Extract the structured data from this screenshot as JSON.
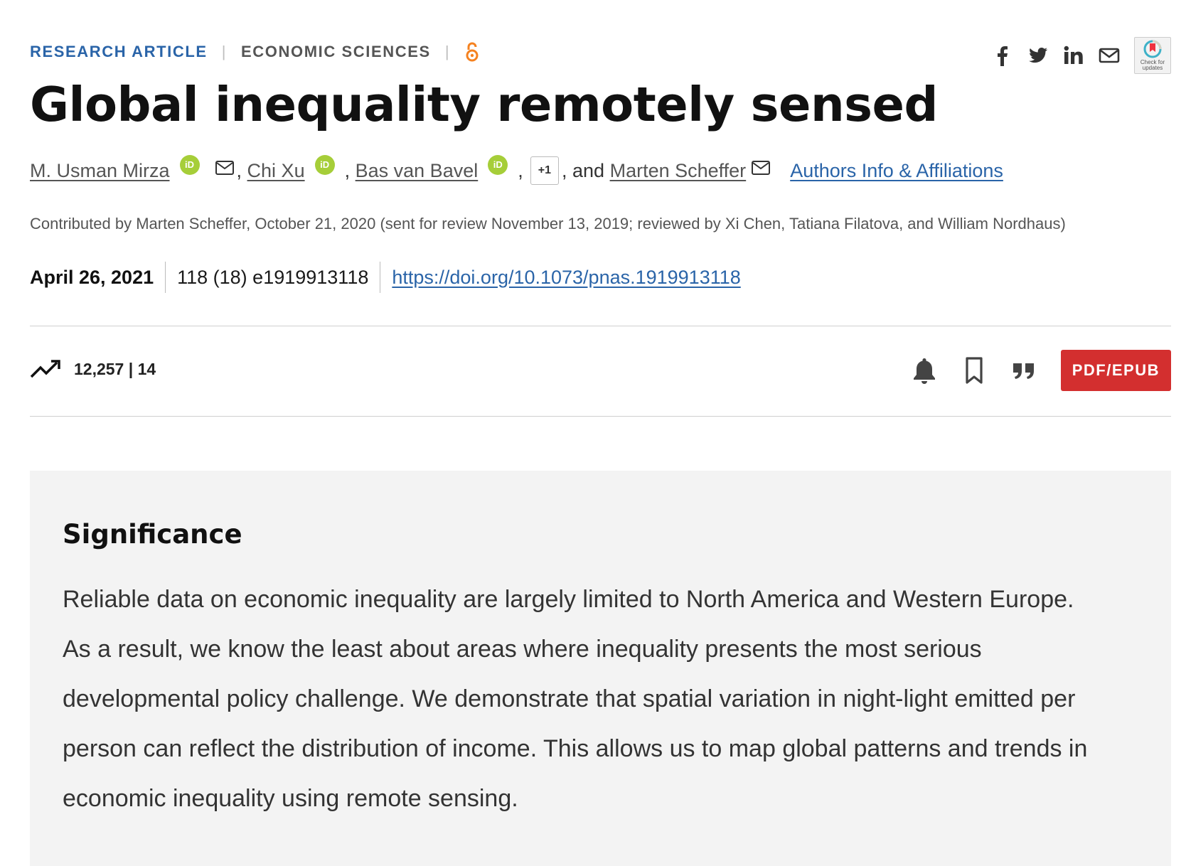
{
  "header": {
    "article_type": "RESEARCH ARTICLE",
    "section": "ECONOMIC SCIENCES",
    "open_access_icon": "open-access-icon"
  },
  "share": {
    "icons": [
      "facebook-icon",
      "twitter-icon",
      "linkedin-icon",
      "email-icon"
    ],
    "crossmark_label": "Check for updates"
  },
  "title": "Global inequality remotely sensed",
  "authors": {
    "list": [
      "M. Usman Mirza",
      "Chi Xu",
      "Bas van Bavel",
      "Marten Scheffer"
    ],
    "orcid_label": "iD",
    "comma": ",",
    "more_label": "+1",
    "and_text": ", and",
    "affiliations_link": "Authors Info & Affiliations"
  },
  "contrib_text": "Contributed by Marten Scheffer, October 21, 2020 (sent for review November 13, 2019; reviewed by Xi Chen, Tatiana Filatova, and William Nordhaus)",
  "publication": {
    "date": "April 26, 2021",
    "citation": "118 (18) e1919913118",
    "doi": "https://doi.org/10.1073/pnas.1919913118"
  },
  "metrics": {
    "views": "12,257",
    "separator": "|",
    "citations": "14"
  },
  "actions": {
    "icons": [
      "bell-icon",
      "bookmark-icon",
      "quote-icon"
    ],
    "pdf_label": "PDF/EPUB",
    "pdf_color": "#d32f2f"
  },
  "significance": {
    "heading": "Significance",
    "text": "Reliable data on economic inequality are largely limited to North America and Western Europe. As a result, we know the least about areas where inequality presents the most serious developmental policy challenge. We demonstrate that spatial variation in night-light emitted per person can reflect the distribution of income. This allows us to map global patterns and trends in economic inequality using remote sensing."
  },
  "colors": {
    "link": "#2a64a8",
    "orcid": "#a6ce39",
    "open_access": "#f58220",
    "panel_bg": "#f3f3f3"
  }
}
